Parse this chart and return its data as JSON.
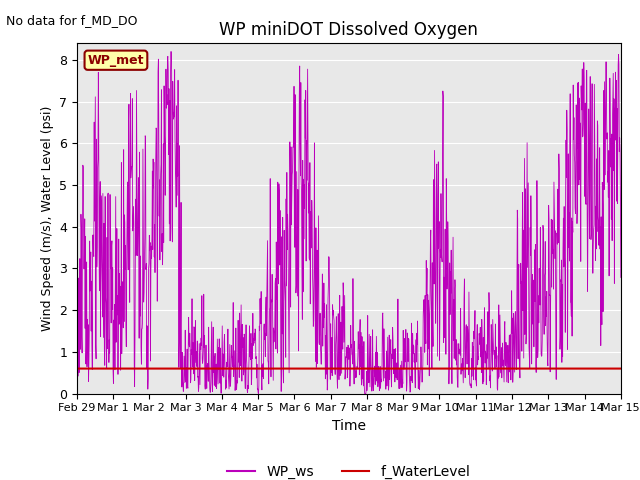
{
  "title": "WP miniDOT Dissolved Oxygen",
  "xlabel": "Time",
  "ylabel": "Wind Speed (m/s), Water Level (psi)",
  "annotation_text": "No data for f_MD_DO",
  "legend_box_label": "WP_met",
  "legend_box_color": "#ffffaa",
  "legend_box_edge_color": "#8b0000",
  "ws_color": "#bb00bb",
  "wl_color": "#cc0000",
  "wl_value": 0.6,
  "ylim": [
    0.0,
    8.4
  ],
  "yticks": [
    0.0,
    1.0,
    2.0,
    3.0,
    4.0,
    5.0,
    6.0,
    7.0,
    8.0
  ],
  "bg_color": "#e8e8e8",
  "legend_ws_label": "WP_ws",
  "legend_wl_label": "f_WaterLevel",
  "title_fontsize": 12,
  "annotation_fontsize": 9,
  "ylabel_fontsize": 9,
  "xlabel_fontsize": 10
}
